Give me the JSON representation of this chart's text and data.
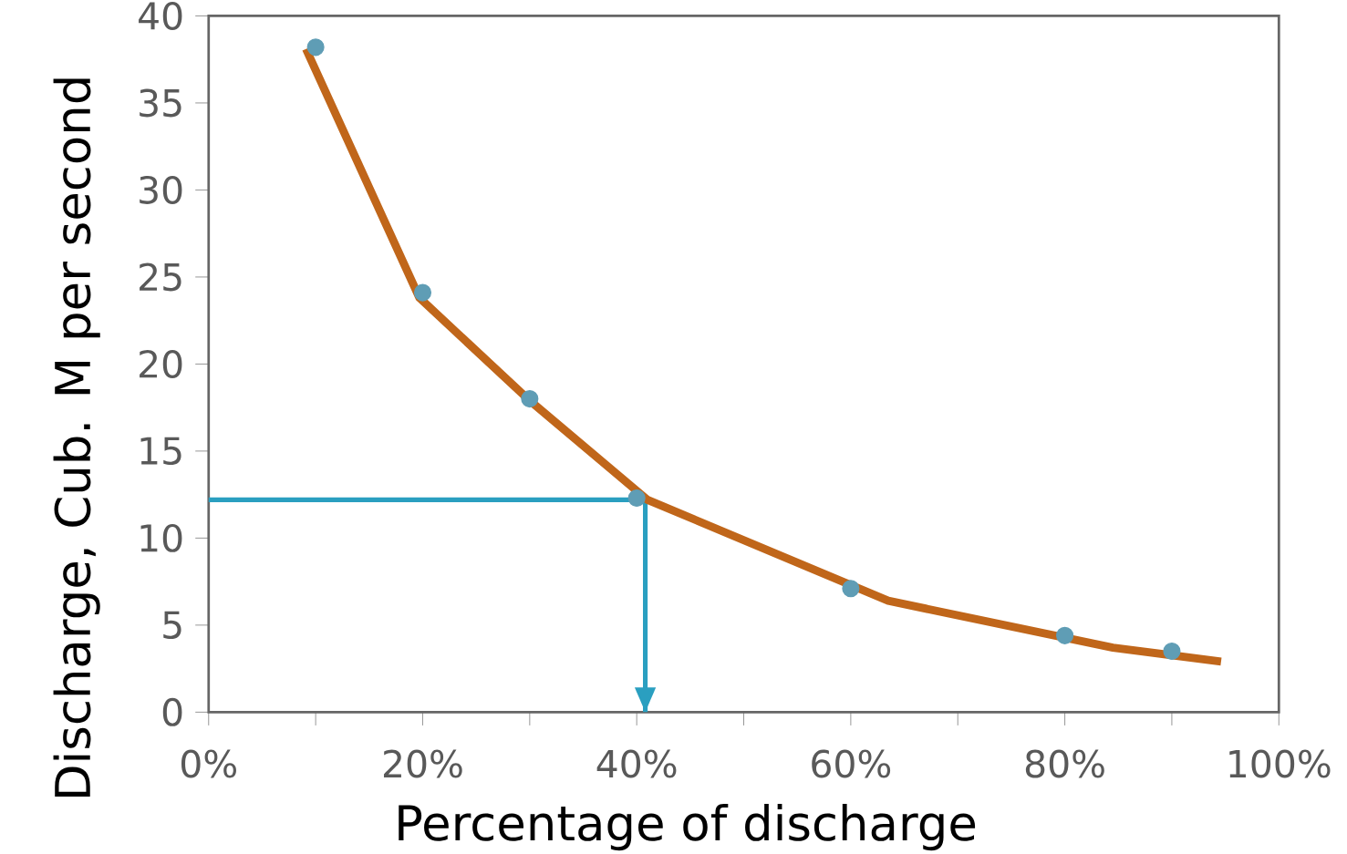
{
  "chart_data": {
    "type": "line",
    "xlabel": "Percentage of discharge",
    "ylabel": "Discharge, Cub. M per second",
    "xlim": [
      0,
      100
    ],
    "ylim": [
      0,
      40
    ],
    "xticks": [
      {
        "value": 0,
        "label": "0%"
      },
      {
        "value": 10,
        "label": null
      },
      {
        "value": 20,
        "label": "20%"
      },
      {
        "value": 30,
        "label": null
      },
      {
        "value": 40,
        "label": "40%"
      },
      {
        "value": 50,
        "label": null
      },
      {
        "value": 60,
        "label": "60%"
      },
      {
        "value": 70,
        "label": null
      },
      {
        "value": 80,
        "label": "80%"
      },
      {
        "value": 90,
        "label": null
      },
      {
        "value": 100,
        "label": "100%"
      }
    ],
    "yticks": [
      0,
      5,
      10,
      15,
      20,
      25,
      30,
      35,
      40
    ],
    "series": [
      {
        "type": "scatter",
        "marker": "circle",
        "color": "#5f9db5",
        "x": [
          10,
          20,
          30,
          40,
          60,
          80,
          90
        ],
        "values": [
          38.2,
          24.1,
          18.0,
          12.3,
          7.1,
          4.4,
          3.5
        ]
      },
      {
        "marker": "none",
        "line_style": "solid",
        "color": "#c0661a",
        "x": [
          9.1,
          19.7,
          30,
          41,
          63.5,
          84.5,
          94.6
        ],
        "values": [
          38.1,
          23.8,
          17.9,
          12.2,
          6.4,
          3.7,
          2.9
        ]
      }
    ],
    "ref_lines": [
      {
        "axis": "y",
        "value": 12.2,
        "color": "#2a9fc0"
      },
      {
        "axis": "x",
        "value": 40.8,
        "color": "#2a9fc0"
      }
    ]
  }
}
